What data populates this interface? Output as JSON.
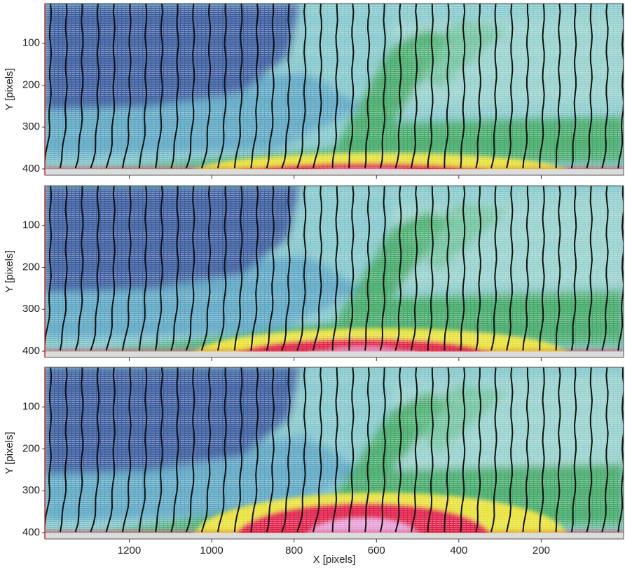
{
  "chart_data": [
    {
      "type": "contour",
      "ylabel": "Y [pixels]",
      "xlim": [
        1405,
        0
      ],
      "ylim": [
        5,
        415
      ],
      "xticks": [
        1200,
        1000,
        800,
        600,
        400,
        200
      ],
      "yticks": [
        100,
        200,
        300,
        400
      ]
    },
    {
      "type": "contour",
      "ylabel": "Y [pixels]",
      "xlim": [
        1405,
        0
      ],
      "ylim": [
        5,
        415
      ],
      "xticks": [
        1200,
        1000,
        800,
        600,
        400,
        200
      ],
      "yticks": [
        100,
        200,
        300,
        400
      ]
    },
    {
      "type": "contour",
      "ylabel": "Y [pixels]",
      "xlabel": "X [pixels]",
      "xlim": [
        1405,
        0
      ],
      "ylim": [
        5,
        415
      ],
      "xticks": [
        1200,
        1000,
        800,
        600,
        400,
        200
      ],
      "yticks": [
        100,
        200,
        300,
        400
      ]
    }
  ]
}
